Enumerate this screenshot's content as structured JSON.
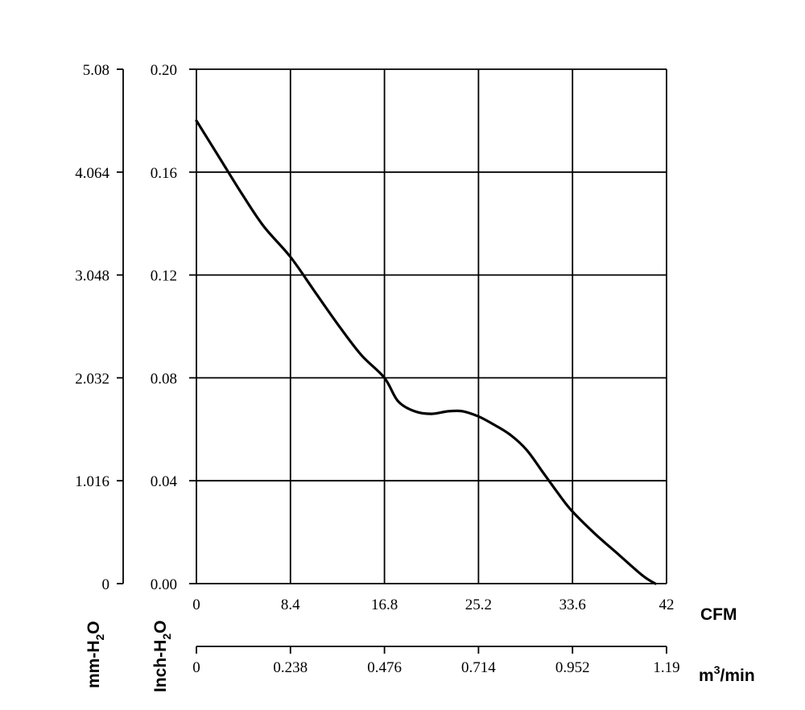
{
  "chart_data": {
    "type": "line",
    "title": "",
    "grid": true,
    "x_axis": {
      "label": "CFM",
      "range": [
        0,
        42
      ],
      "ticks": [
        "0",
        "8.4",
        "16.8",
        "25.2",
        "33.6",
        "42"
      ]
    },
    "x_axis_secondary": {
      "label_base": "m",
      "label_sup": "3",
      "label_rest": "/min",
      "range": [
        0,
        1.19
      ],
      "ticks": [
        "0",
        "0.238",
        "0.476",
        "0.714",
        "0.952",
        "1.19"
      ]
    },
    "y_axis": {
      "label_base": "Inch-H",
      "label_sub": "2",
      "label_rest": "O",
      "range": [
        0,
        0.2
      ],
      "ticks": [
        "0.00",
        "0.04",
        "0.08",
        "0.12",
        "0.16",
        "0.20"
      ]
    },
    "y_axis_secondary": {
      "label_base": "mm-H",
      "label_sub": "2",
      "label_rest": "O",
      "range": [
        0,
        5.08
      ],
      "ticks": [
        "0",
        "1.016",
        "2.032",
        "3.048",
        "4.064",
        "5.08"
      ]
    },
    "series": [
      {
        "x": [
          0,
          2.0,
          4.0,
          6.0,
          8.4,
          10.5,
          12.6,
          14.7,
          16.8,
          18.0,
          19.5,
          21.0,
          22.5,
          23.8,
          25.2,
          26.5,
          28.0,
          29.5,
          31.0,
          32.5,
          33.6,
          35.7,
          37.8,
          39.9,
          41.0
        ],
        "y": [
          0.18,
          0.166,
          0.152,
          0.139,
          0.127,
          0.114,
          0.101,
          0.089,
          0.08,
          0.071,
          0.067,
          0.066,
          0.067,
          0.067,
          0.065,
          0.062,
          0.058,
          0.052,
          0.043,
          0.034,
          0.028,
          0.019,
          0.011,
          0.003,
          0.0
        ]
      }
    ]
  }
}
